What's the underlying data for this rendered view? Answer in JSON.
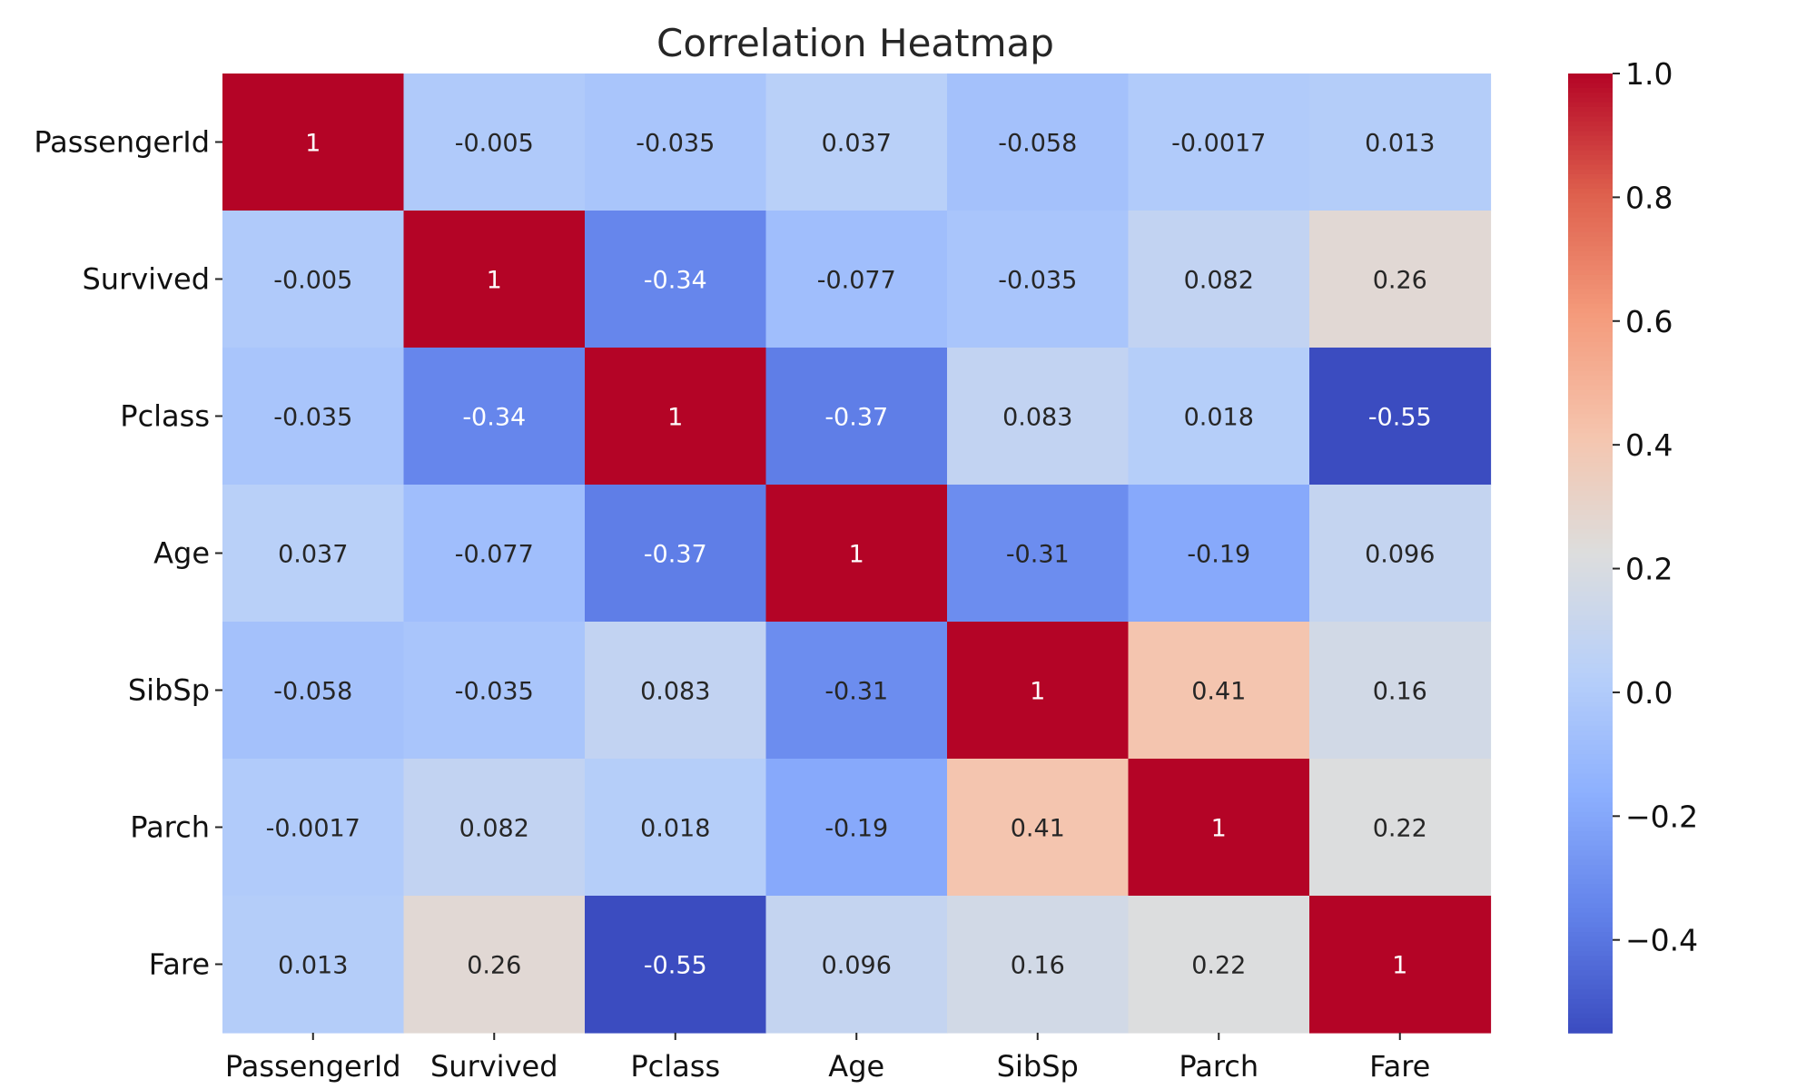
{
  "chart_data": {
    "type": "heatmap",
    "title": "Correlation Heatmap",
    "rows": [
      "PassengerId",
      "Survived",
      "Pclass",
      "Age",
      "SibSp",
      "Parch",
      "Fare"
    ],
    "columns": [
      "PassengerId",
      "Survived",
      "Pclass",
      "Age",
      "SibSp",
      "Parch",
      "Fare"
    ],
    "values": [
      [
        1,
        -0.005,
        -0.035,
        0.037,
        -0.058,
        -0.0017,
        0.013
      ],
      [
        -0.005,
        1,
        -0.34,
        -0.077,
        -0.035,
        0.082,
        0.26
      ],
      [
        -0.035,
        -0.34,
        1,
        -0.37,
        0.083,
        0.018,
        -0.55
      ],
      [
        0.037,
        -0.077,
        -0.37,
        1,
        -0.31,
        -0.19,
        0.096
      ],
      [
        -0.058,
        -0.035,
        0.083,
        -0.31,
        1,
        0.41,
        0.16
      ],
      [
        -0.0017,
        0.082,
        0.018,
        -0.19,
        0.41,
        1,
        0.22
      ],
      [
        0.013,
        0.26,
        -0.55,
        0.096,
        0.16,
        0.22,
        1
      ]
    ],
    "value_labels": [
      [
        "1",
        "-0.005",
        "-0.035",
        "0.037",
        "-0.058",
        "-0.0017",
        "0.013"
      ],
      [
        "-0.005",
        "1",
        "-0.34",
        "-0.077",
        "-0.035",
        "0.082",
        "0.26"
      ],
      [
        "-0.035",
        "-0.34",
        "1",
        "-0.37",
        "0.083",
        "0.018",
        "-0.55"
      ],
      [
        "0.037",
        "-0.077",
        "-0.37",
        "1",
        "-0.31",
        "-0.19",
        "0.096"
      ],
      [
        "-0.058",
        "-0.035",
        "0.083",
        "-0.31",
        "1",
        "0.41",
        "0.16"
      ],
      [
        "-0.0017",
        "0.082",
        "0.018",
        "-0.19",
        "0.41",
        "1",
        "0.22"
      ],
      [
        "0.013",
        "0.26",
        "-0.55",
        "0.096",
        "0.16",
        "0.22",
        "1"
      ]
    ],
    "colormap": "coolwarm",
    "vmin": -0.55,
    "vmax": 1,
    "colorbar": {
      "ticks": [
        1.0,
        0.8,
        0.6,
        0.4,
        0.2,
        0.0,
        -0.2,
        -0.4
      ],
      "tick_labels": [
        "1.0",
        "0.8",
        "0.6",
        "0.4",
        "0.2",
        "0.0",
        "−0.2",
        "−0.4"
      ]
    },
    "grid": false,
    "legend": "colorbar-right"
  }
}
